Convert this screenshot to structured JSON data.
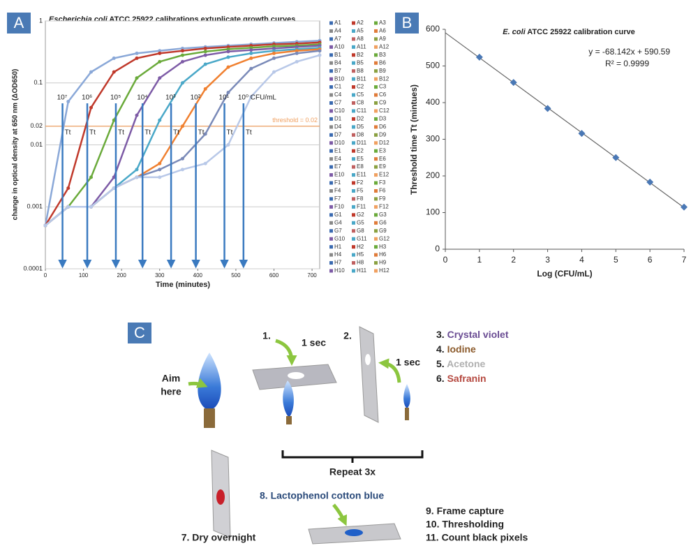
{
  "panel_labels": [
    "A",
    "B",
    "C"
  ],
  "chart_data": [
    {
      "type": "line",
      "title_italic": "Escherichia coli",
      "title_rest": " ATCC 25922 calibrations extuplicate growth curves",
      "x_label": "Time (minutes)",
      "y_label": "change in optical density at 650 nm (ΔOD650)",
      "log_y": true,
      "xlim": [
        0,
        720
      ],
      "xticks": [
        0,
        100,
        200,
        300,
        400,
        500,
        600,
        700
      ],
      "ylim": [
        0.0001,
        1
      ],
      "yticks": [
        0.0001,
        0.001,
        0.01,
        0.02,
        0.1,
        1
      ],
      "grid": true,
      "threshold": 0.02,
      "threshold_label": "threshold = 0.02",
      "threshold_color": "#f0a060",
      "threshold_time_label": "Tt",
      "threshold_times": [
        45,
        110,
        185,
        255,
        330,
        395,
        470,
        520
      ],
      "x": [
        0,
        60,
        120,
        180,
        240,
        300,
        360,
        420,
        480,
        540,
        600,
        660,
        720
      ],
      "series": [
        {
          "name": "10⁷",
          "color": "#8aa8d8",
          "values": [
            0.0005,
            0.05,
            0.15,
            0.25,
            0.3,
            0.33,
            0.36,
            0.38,
            0.4,
            0.42,
            0.44,
            0.46,
            0.48
          ]
        },
        {
          "name": "10⁶",
          "color": "#c0392b",
          "values": [
            0.0005,
            0.002,
            0.04,
            0.15,
            0.25,
            0.3,
            0.33,
            0.36,
            0.38,
            0.4,
            0.42,
            0.43,
            0.45
          ]
        },
        {
          "name": "10⁵",
          "color": "#6aaa3a",
          "values": [
            0.0005,
            0.001,
            0.003,
            0.025,
            0.12,
            0.22,
            0.28,
            0.32,
            0.35,
            0.37,
            0.39,
            0.4,
            0.42
          ]
        },
        {
          "name": "10⁴",
          "color": "#7d5ba6",
          "values": [
            0.0005,
            0.001,
            0.001,
            0.003,
            0.03,
            0.12,
            0.22,
            0.28,
            0.32,
            0.34,
            0.36,
            0.38,
            0.4
          ]
        },
        {
          "name": "10³",
          "color": "#4aa8c8",
          "values": [
            0.0005,
            0.001,
            0.001,
            0.002,
            0.004,
            0.025,
            0.1,
            0.2,
            0.26,
            0.3,
            0.33,
            0.35,
            0.37
          ]
        },
        {
          "name": "10²",
          "color": "#f08030",
          "values": [
            0.0005,
            0.001,
            0.001,
            0.002,
            0.003,
            0.005,
            0.02,
            0.08,
            0.18,
            0.25,
            0.3,
            0.33,
            0.35
          ]
        },
        {
          "name": "10¹",
          "color": "#7a8ab8",
          "values": [
            0.0005,
            0.001,
            0.001,
            0.002,
            0.003,
            0.004,
            0.006,
            0.015,
            0.07,
            0.17,
            0.25,
            0.3,
            0.33
          ]
        },
        {
          "name": "10⁰ CFU/mL",
          "color": "#b8c8e8",
          "values": [
            0.0005,
            0.001,
            0.001,
            0.002,
            0.003,
            0.003,
            0.004,
            0.005,
            0.01,
            0.06,
            0.15,
            0.22,
            0.28
          ]
        }
      ],
      "legend_colors": [
        "#3a6ab0",
        "#c0392b",
        "#6aaa3a",
        "#888888",
        "#4aa8c8",
        "#e07b39",
        "#3a6ab0",
        "#c06060",
        "#8aa040",
        "#7d5ba6",
        "#4aa8c8",
        "#f0a060"
      ],
      "legend_entries": [
        "A1",
        "A2",
        "A3",
        "A4",
        "A5",
        "A6",
        "A7",
        "A8",
        "A9",
        "A10",
        "A11",
        "A12",
        "B1",
        "B2",
        "B3",
        "B4",
        "B5",
        "B6",
        "B7",
        "B8",
        "B9",
        "B10",
        "B11",
        "B12",
        "C1",
        "C2",
        "C3",
        "C4",
        "C5",
        "C6",
        "C7",
        "C8",
        "C9",
        "C10",
        "C11",
        "C12",
        "D1",
        "D2",
        "D3",
        "D4",
        "D5",
        "D6",
        "D7",
        "D8",
        "D9",
        "D10",
        "D11",
        "D12",
        "E1",
        "E2",
        "E3",
        "E4",
        "E5",
        "E6",
        "E7",
        "E8",
        "E9",
        "E10",
        "E11",
        "E12",
        "F1",
        "F2",
        "F3",
        "F4",
        "F5",
        "F6",
        "F7",
        "F8",
        "F9",
        "F10",
        "F11",
        "F12",
        "G1",
        "G2",
        "G3",
        "G4",
        "G5",
        "G6",
        "G7",
        "G8",
        "G9",
        "G10",
        "G11",
        "G12",
        "H1",
        "H2",
        "H3",
        "H4",
        "H5",
        "H6",
        "H7",
        "H8",
        "H9",
        "H10",
        "H11",
        "H12"
      ]
    },
    {
      "type": "scatter",
      "title_italic": "E. coli",
      "title_rest": " ATCC 25922 calibration curve",
      "x_label": "Log (CFU/mL)",
      "y_label": "Threshold time Tt (mintues)",
      "xlim": [
        0,
        7
      ],
      "xticks": [
        0,
        1,
        2,
        3,
        4,
        5,
        6,
        7
      ],
      "ylim": [
        0,
        600
      ],
      "yticks": [
        0,
        100,
        200,
        300,
        400,
        500,
        600
      ],
      "x": [
        1,
        2,
        3,
        4,
        5,
        6,
        7
      ],
      "values": [
        524,
        455,
        384,
        316,
        250,
        183,
        115
      ],
      "color": "#4a78b5",
      "trendline": {
        "slope": -68.142,
        "intercept": 590.59,
        "color": "#666666"
      },
      "equation": "y = -68.142x + 590.59",
      "r_squared": "R² = 0.9999"
    }
  ],
  "diagram": {
    "aim": [
      "Aim",
      "here"
    ],
    "step1": "1.",
    "step2": "2.",
    "duration": "1 sec",
    "stains": [
      {
        "number": "3.",
        "name": "Crystal violet",
        "color": "#6a4c93"
      },
      {
        "number": "4.",
        "name": "Iodine",
        "color": "#8b5a2b"
      },
      {
        "number": "5.",
        "name": "Acetone",
        "color": "#b0b0b0"
      },
      {
        "number": "6.",
        "name": "Safranin",
        "color": "#b5483f"
      }
    ],
    "repeat": "Repeat 3x",
    "step7": "7. Dry overnight",
    "step8": "8. Lactophenol cotton blue",
    "final_steps": [
      "9. Frame capture",
      "10. Thresholding",
      "11. Count black pixels"
    ]
  }
}
